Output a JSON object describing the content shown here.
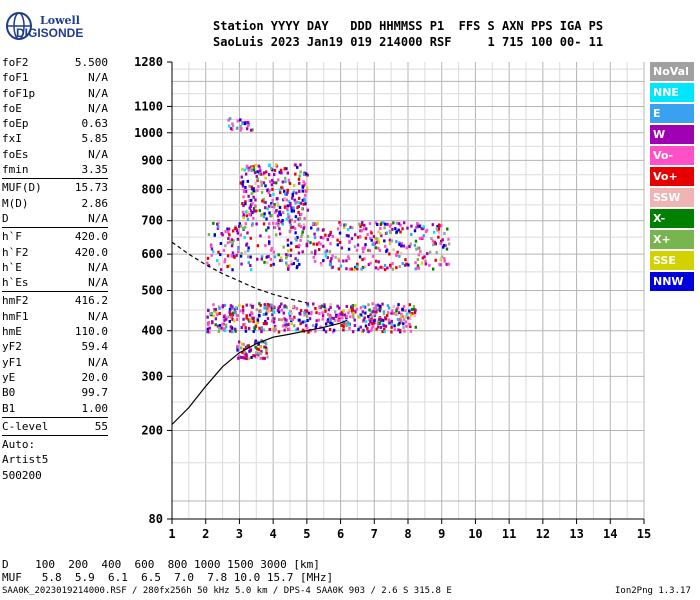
{
  "logo": {
    "line1": "Lowell",
    "line2": "DIGISONDE"
  },
  "header": {
    "line1": "Station YYYY DAY   DDD HHMMSS P1  FFS S AXN PPS IGA PS",
    "line2": "SaoLuis 2023 Jan19 019 214000 RSF     1 715 100 00- 11"
  },
  "params": [
    {
      "label": "foF2",
      "value": "5.500"
    },
    {
      "label": "foF1",
      "value": "N/A"
    },
    {
      "label": "foF1p",
      "value": "N/A"
    },
    {
      "label": "foE",
      "value": "N/A"
    },
    {
      "label": "foEp",
      "value": "0.63"
    },
    {
      "label": "fxI",
      "value": "5.85"
    },
    {
      "label": "foEs",
      "value": "N/A"
    },
    {
      "label": "fmin",
      "value": "3.35"
    },
    {
      "sep": true
    },
    {
      "label": "MUF(D)",
      "value": "15.73"
    },
    {
      "label": "M(D)",
      "value": "2.86"
    },
    {
      "label": "D",
      "value": "N/A"
    },
    {
      "sep": true
    },
    {
      "label": "h`F",
      "value": "420.0"
    },
    {
      "label": "h`F2",
      "value": "420.0"
    },
    {
      "label": "h`E",
      "value": "N/A"
    },
    {
      "label": "h`Es",
      "value": "N/A"
    },
    {
      "sep": true
    },
    {
      "label": "hmF2",
      "value": "416.2"
    },
    {
      "label": "hmF1",
      "value": "N/A"
    },
    {
      "label": "hmE",
      "value": "110.0"
    },
    {
      "label": "yF2",
      "value": "59.4"
    },
    {
      "label": "yF1",
      "value": "N/A"
    },
    {
      "label": "yE",
      "value": "20.0"
    },
    {
      "label": "B0",
      "value": "99.7"
    },
    {
      "label": "B1",
      "value": "1.00"
    },
    {
      "sep": true
    },
    {
      "label": "C-level",
      "value": "55"
    },
    {
      "sep": true
    }
  ],
  "autoscale": {
    "l1": "Auto:",
    "l2": "Artist5",
    "l3": "500200"
  },
  "legend": [
    {
      "label": "NoVal",
      "color": "#a0a0a0"
    },
    {
      "label": "NNE",
      "color": "#00e6ff"
    },
    {
      "label": "E",
      "color": "#3aa0f0"
    },
    {
      "label": "W",
      "color": "#a000b4"
    },
    {
      "label": "Vo-",
      "color": "#ff50c8"
    },
    {
      "label": "Vo+",
      "color": "#e60000"
    },
    {
      "label": "SSW",
      "color": "#f0b4b4"
    },
    {
      "label": "X-",
      "color": "#008000"
    },
    {
      "label": "X+",
      "color": "#78b450"
    },
    {
      "label": "SSE",
      "color": "#d2d200"
    },
    {
      "label": "NNW",
      "color": "#0000dc"
    }
  ],
  "footer": {
    "d_line": "D    100  200  400  600  800 1000 1500 3000 [km]",
    "muf_line": "MUF   5.8  5.9  6.1  6.5  7.0  7.8 10.0 15.7 [MHz]",
    "filename": "SAA0K_2023019214000.RSF / 280fx256h 50 kHz 5.0 km / DPS-4 SAA0K 903 / 2.6 S 315.8 E",
    "version": "Ion2Png 1.3.17"
  },
  "chart_data": {
    "type": "scatter",
    "xlim": [
      1,
      15
    ],
    "x_ticks": [
      1,
      2,
      3,
      4,
      5,
      6,
      7,
      8,
      9,
      10,
      11,
      12,
      13,
      14,
      15
    ],
    "y_ticks": [
      80,
      200,
      300,
      400,
      500,
      600,
      700,
      800,
      900,
      1000,
      1100,
      1280
    ],
    "y_scale": "sqrt",
    "xlabel": "",
    "ylabel": "",
    "grid": true,
    "echo_traces": [
      {
        "name": "F2 trace",
        "x_range": [
          2.0,
          8.2
        ],
        "y_range": [
          400,
          470
        ]
      },
      {
        "name": "F2 2nd hop",
        "x_range": [
          2.0,
          9.2
        ],
        "y_range": [
          560,
          700
        ]
      },
      {
        "name": "F2 3rd hop",
        "x_range": [
          3.0,
          5.0
        ],
        "y_range": [
          700,
          890
        ]
      },
      {
        "name": "spread top",
        "x_range": [
          2.6,
          3.4
        ],
        "y_range": [
          1010,
          1060
        ]
      },
      {
        "name": "low spread",
        "x_range": [
          2.9,
          3.8
        ],
        "y_range": [
          340,
          380
        ]
      }
    ],
    "profile_curve": [
      [
        1.0,
        210
      ],
      [
        1.5,
        240
      ],
      [
        2.0,
        280
      ],
      [
        2.5,
        320
      ],
      [
        3.0,
        350
      ],
      [
        3.5,
        370
      ],
      [
        4.0,
        385
      ],
      [
        4.5,
        392
      ],
      [
        5.0,
        400
      ],
      [
        5.5,
        408
      ],
      [
        6.0,
        418
      ],
      [
        6.2,
        425
      ]
    ],
    "mode_curve": [
      [
        1.0,
        635
      ],
      [
        1.5,
        600
      ],
      [
        2.0,
        570
      ],
      [
        2.5,
        545
      ],
      [
        3.0,
        525
      ],
      [
        3.5,
        505
      ],
      [
        4.0,
        490
      ],
      [
        4.5,
        478
      ],
      [
        5.0,
        468
      ]
    ]
  }
}
